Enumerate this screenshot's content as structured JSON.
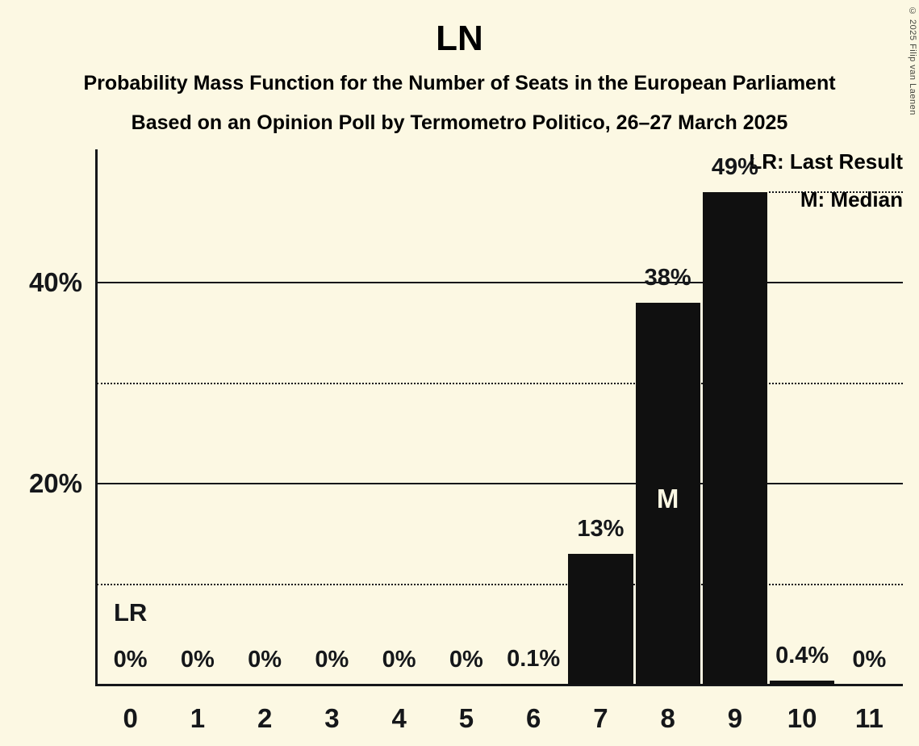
{
  "title": "LN",
  "subtitle1": "Probability Mass Function for the Number of Seats in the European Parliament",
  "subtitle2": "Based on an Opinion Poll by Termometro Politico, 26–27 March 2025",
  "copyright": "© 2025 Filip van Laenen",
  "legend": {
    "lr": "LR: Last Result",
    "m": "M: Median",
    "position": "top-right"
  },
  "colors": {
    "background": "#FCF8E3",
    "bar": "#101010",
    "text": "#15171A"
  },
  "chart_data": {
    "type": "bar",
    "title": "LN",
    "xlabel": "Number of Seats",
    "ylabel": "Probability",
    "categories": [
      "0",
      "1",
      "2",
      "3",
      "4",
      "5",
      "6",
      "7",
      "8",
      "9",
      "10",
      "11"
    ],
    "values": [
      0,
      0,
      0,
      0,
      0,
      0,
      0.1,
      13,
      38,
      49,
      0.4,
      0
    ],
    "labels": [
      "0%",
      "0%",
      "0%",
      "0%",
      "0%",
      "0%",
      "0.1%",
      "13%",
      "38%",
      "49%",
      "0.4%",
      "0%"
    ],
    "ylim": [
      0,
      53
    ],
    "grid": "horizontal",
    "gridlines": [
      {
        "value": 10,
        "style": "dotted",
        "label": ""
      },
      {
        "value": 20,
        "style": "solid",
        "label": "20%"
      },
      {
        "value": 30,
        "style": "dotted",
        "label": ""
      },
      {
        "value": 40,
        "style": "solid",
        "label": "40%"
      }
    ],
    "annotations": {
      "lr_label": "LR",
      "lr_category": "0",
      "median_label": "M",
      "median_category": "8",
      "dotted_segment": {
        "level": 49,
        "start_after_category": "9"
      }
    }
  }
}
